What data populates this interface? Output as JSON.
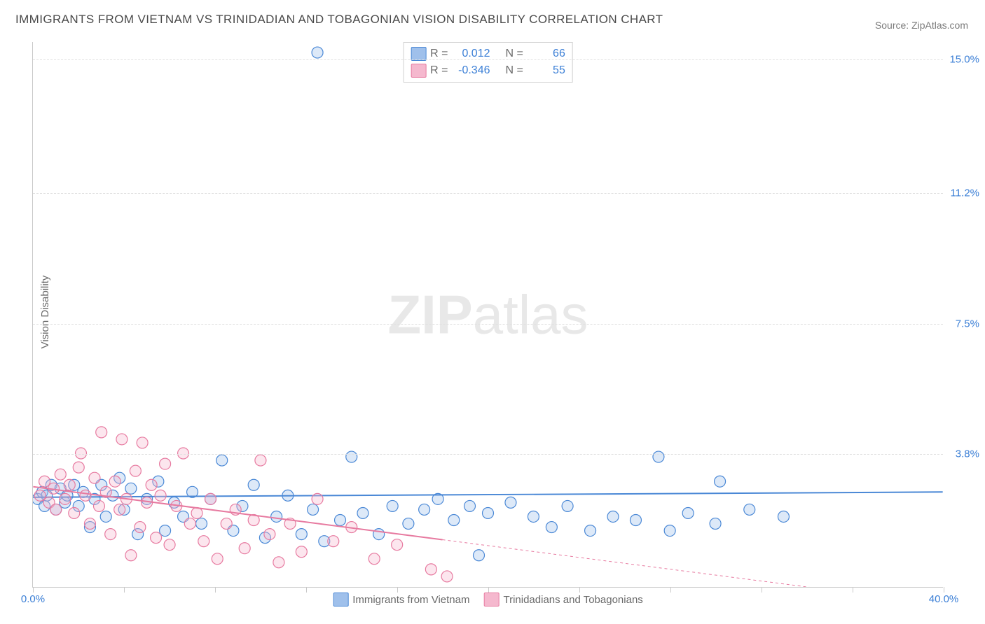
{
  "title": "IMMIGRANTS FROM VIETNAM VS TRINIDADIAN AND TOBAGONIAN VISION DISABILITY CORRELATION CHART",
  "source": "Source: ZipAtlas.com",
  "ylabel": "Vision Disability",
  "watermark_bold": "ZIP",
  "watermark_light": "atlas",
  "chart": {
    "type": "scatter",
    "xlim": [
      0.0,
      40.0
    ],
    "ylim": [
      0.0,
      15.5
    ],
    "x_ticks": [
      0.0,
      4.0,
      8.0,
      12.0,
      16.0,
      20.0,
      24.0,
      28.0,
      32.0,
      36.0,
      40.0
    ],
    "x_tick_labels_shown": {
      "0": "0.0%",
      "40": "40.0%"
    },
    "y_gridlines": [
      3.8,
      7.5,
      11.2,
      15.0
    ],
    "y_tick_labels": [
      "3.8%",
      "7.5%",
      "11.2%",
      "15.0%"
    ],
    "background_color": "#ffffff",
    "grid_color": "#e0e0e0",
    "axis_color": "#c9c9c9",
    "marker_radius": 8,
    "marker_fill_opacity": 0.35,
    "marker_stroke_width": 1.2,
    "line_width": 2,
    "series": [
      {
        "name": "Immigrants from Vietnam",
        "color_stroke": "#4a88d6",
        "color_fill": "#9fc0eb",
        "R": "0.012",
        "N": "66",
        "regression": {
          "x1": 0.0,
          "y1": 2.55,
          "x2": 40.0,
          "y2": 2.7,
          "solid_until_x": 40.0
        },
        "points": [
          [
            0.2,
            2.5
          ],
          [
            0.4,
            2.7
          ],
          [
            0.5,
            2.3
          ],
          [
            0.6,
            2.6
          ],
          [
            0.8,
            2.9
          ],
          [
            1.0,
            2.2
          ],
          [
            1.2,
            2.8
          ],
          [
            1.4,
            2.4
          ],
          [
            1.5,
            2.6
          ],
          [
            1.8,
            2.9
          ],
          [
            2.0,
            2.3
          ],
          [
            2.2,
            2.7
          ],
          [
            2.5,
            1.7
          ],
          [
            2.7,
            2.5
          ],
          [
            3.0,
            2.9
          ],
          [
            3.2,
            2.0
          ],
          [
            3.5,
            2.6
          ],
          [
            3.8,
            3.1
          ],
          [
            4.0,
            2.2
          ],
          [
            4.3,
            2.8
          ],
          [
            4.6,
            1.5
          ],
          [
            5.0,
            2.5
          ],
          [
            5.5,
            3.0
          ],
          [
            5.8,
            1.6
          ],
          [
            6.2,
            2.4
          ],
          [
            6.6,
            2.0
          ],
          [
            7.0,
            2.7
          ],
          [
            7.4,
            1.8
          ],
          [
            7.8,
            2.5
          ],
          [
            8.3,
            3.6
          ],
          [
            8.8,
            1.6
          ],
          [
            9.2,
            2.3
          ],
          [
            9.7,
            2.9
          ],
          [
            10.2,
            1.4
          ],
          [
            10.7,
            2.0
          ],
          [
            11.2,
            2.6
          ],
          [
            11.8,
            1.5
          ],
          [
            12.3,
            2.2
          ],
          [
            12.5,
            15.2
          ],
          [
            12.8,
            1.3
          ],
          [
            13.5,
            1.9
          ],
          [
            14.0,
            3.7
          ],
          [
            14.5,
            2.1
          ],
          [
            15.2,
            1.5
          ],
          [
            15.8,
            2.3
          ],
          [
            16.5,
            1.8
          ],
          [
            17.2,
            2.2
          ],
          [
            17.8,
            2.5
          ],
          [
            18.5,
            1.9
          ],
          [
            19.2,
            2.3
          ],
          [
            19.6,
            0.9
          ],
          [
            20.0,
            2.1
          ],
          [
            21.0,
            2.4
          ],
          [
            22.0,
            2.0
          ],
          [
            22.8,
            1.7
          ],
          [
            23.5,
            2.3
          ],
          [
            24.5,
            1.6
          ],
          [
            25.5,
            2.0
          ],
          [
            26.5,
            1.9
          ],
          [
            27.5,
            3.7
          ],
          [
            28.0,
            1.6
          ],
          [
            28.8,
            2.1
          ],
          [
            30.0,
            1.8
          ],
          [
            30.2,
            3.0
          ],
          [
            31.5,
            2.2
          ],
          [
            33.0,
            2.0
          ]
        ]
      },
      {
        "name": "Trinidadians and Tobagonians",
        "color_stroke": "#e77aa0",
        "color_fill": "#f5b8ce",
        "R": "-0.346",
        "N": "55",
        "regression": {
          "x1": 0.0,
          "y1": 2.85,
          "x2": 40.0,
          "y2": -0.5,
          "solid_until_x": 18.0
        },
        "points": [
          [
            0.3,
            2.6
          ],
          [
            0.5,
            3.0
          ],
          [
            0.7,
            2.4
          ],
          [
            0.9,
            2.8
          ],
          [
            1.0,
            2.2
          ],
          [
            1.2,
            3.2
          ],
          [
            1.4,
            2.5
          ],
          [
            1.6,
            2.9
          ],
          [
            1.8,
            2.1
          ],
          [
            2.0,
            3.4
          ],
          [
            2.1,
            3.8
          ],
          [
            2.3,
            2.6
          ],
          [
            2.5,
            1.8
          ],
          [
            2.7,
            3.1
          ],
          [
            2.9,
            2.3
          ],
          [
            3.0,
            4.4
          ],
          [
            3.2,
            2.7
          ],
          [
            3.4,
            1.5
          ],
          [
            3.6,
            3.0
          ],
          [
            3.8,
            2.2
          ],
          [
            3.9,
            4.2
          ],
          [
            4.1,
            2.5
          ],
          [
            4.3,
            0.9
          ],
          [
            4.5,
            3.3
          ],
          [
            4.7,
            1.7
          ],
          [
            4.8,
            4.1
          ],
          [
            5.0,
            2.4
          ],
          [
            5.2,
            2.9
          ],
          [
            5.4,
            1.4
          ],
          [
            5.6,
            2.6
          ],
          [
            5.8,
            3.5
          ],
          [
            6.0,
            1.2
          ],
          [
            6.3,
            2.3
          ],
          [
            6.6,
            3.8
          ],
          [
            6.9,
            1.8
          ],
          [
            7.2,
            2.1
          ],
          [
            7.5,
            1.3
          ],
          [
            7.8,
            2.5
          ],
          [
            8.1,
            0.8
          ],
          [
            8.5,
            1.8
          ],
          [
            8.9,
            2.2
          ],
          [
            9.3,
            1.1
          ],
          [
            9.7,
            1.9
          ],
          [
            10.0,
            3.6
          ],
          [
            10.4,
            1.5
          ],
          [
            10.8,
            0.7
          ],
          [
            11.3,
            1.8
          ],
          [
            11.8,
            1.0
          ],
          [
            12.5,
            2.5
          ],
          [
            13.2,
            1.3
          ],
          [
            14.0,
            1.7
          ],
          [
            15.0,
            0.8
          ],
          [
            16.0,
            1.2
          ],
          [
            17.5,
            0.5
          ],
          [
            18.2,
            0.3
          ]
        ]
      }
    ]
  },
  "legend_top": {
    "r_label": "R =",
    "n_label": "N ="
  },
  "legend_bottom": [
    "Immigrants from Vietnam",
    "Trinidadians and Tobagonians"
  ]
}
